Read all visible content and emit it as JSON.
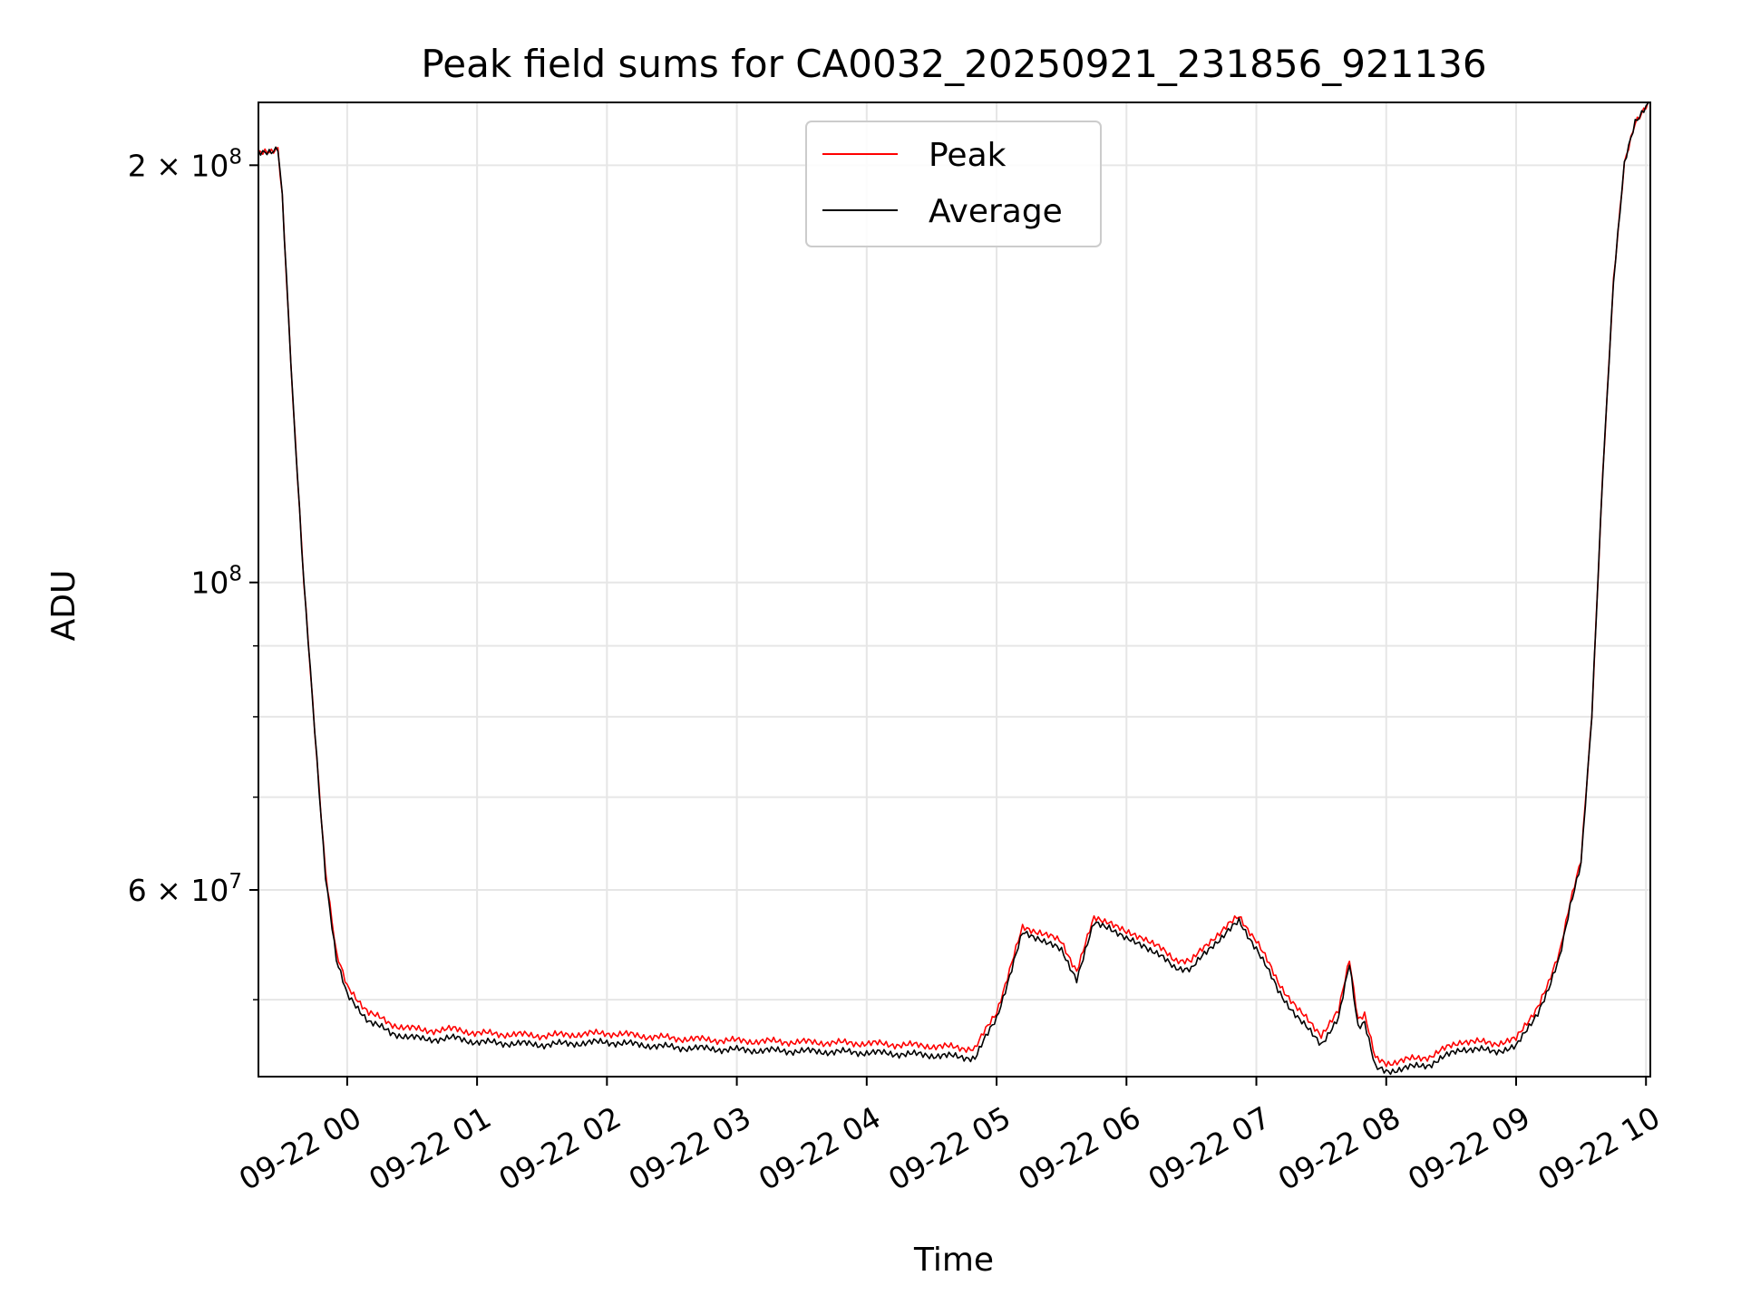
{
  "chart_data": {
    "type": "line",
    "title": "Peak field sums for CA0032_20250921_231856_921136",
    "xlabel": "Time",
    "ylabel": "ADU",
    "yscale": "log",
    "ylim": [
      44000000,
      222000000
    ],
    "xlim": [
      "2025-09-21 23:19",
      "2025-09-22 10:02"
    ],
    "grid": true,
    "legend_position": "top-center",
    "x_ticks": [
      "09-22 00",
      "09-22 01",
      "09-22 02",
      "09-22 03",
      "09-22 04",
      "09-22 05",
      "09-22 06",
      "09-22 07",
      "09-22 08",
      "09-22 09",
      "09-22 10"
    ],
    "y_ticks": [
      {
        "value": 200000000,
        "mantissa": "2",
        "exponent": "8"
      },
      {
        "value": 100000000,
        "mantissa": "",
        "exponent": "8"
      },
      {
        "value": 60000000,
        "mantissa": "6",
        "exponent": "7"
      }
    ],
    "y_minor_ticks": [
      50000000,
      70000000,
      80000000,
      90000000
    ],
    "x": [
      "2025-09-21 23:19",
      "2025-09-21 23:25",
      "2025-09-21 23:28",
      "2025-09-21 23:30",
      "2025-09-21 23:35",
      "2025-09-21 23:40",
      "2025-09-21 23:45",
      "2025-09-21 23:50",
      "2025-09-21 23:55",
      "2025-09-22 00:00",
      "2025-09-22 00:10",
      "2025-09-22 00:20",
      "2025-09-22 00:35",
      "2025-09-22 00:50",
      "2025-09-22 01:00",
      "2025-09-22 01:30",
      "2025-09-22 02:00",
      "2025-09-22 02:30",
      "2025-09-22 03:00",
      "2025-09-22 03:30",
      "2025-09-22 04:00",
      "2025-09-22 04:30",
      "2025-09-22 04:50",
      "2025-09-22 05:00",
      "2025-09-22 05:12",
      "2025-09-22 05:20",
      "2025-09-22 05:30",
      "2025-09-22 05:37",
      "2025-09-22 05:45",
      "2025-09-22 05:52",
      "2025-09-22 06:00",
      "2025-09-22 06:08",
      "2025-09-22 06:15",
      "2025-09-22 06:22",
      "2025-09-22 06:30",
      "2025-09-22 06:40",
      "2025-09-22 06:52",
      "2025-09-22 07:00",
      "2025-09-22 07:10",
      "2025-09-22 07:20",
      "2025-09-22 07:30",
      "2025-09-22 07:38",
      "2025-09-22 07:43",
      "2025-09-22 07:47",
      "2025-09-22 07:50",
      "2025-09-22 07:55",
      "2025-09-22 08:00",
      "2025-09-22 08:20",
      "2025-09-22 08:35",
      "2025-09-22 08:50",
      "2025-09-22 09:00",
      "2025-09-22 09:10",
      "2025-09-22 09:15",
      "2025-09-22 09:20",
      "2025-09-22 09:25",
      "2025-09-22 09:30",
      "2025-09-22 09:35",
      "2025-09-22 09:40",
      "2025-09-22 09:45",
      "2025-09-22 09:50",
      "2025-09-22 09:55",
      "2025-09-22 10:00",
      "2025-09-22 10:02"
    ],
    "series": [
      {
        "name": "Peak",
        "color": "#ff0000",
        "values": [
          205000000,
          204000000,
          205000000,
          190000000,
          135000000,
          100000000,
          78000000,
          62000000,
          54000000,
          51000000,
          49000000,
          48000000,
          47500000,
          47600000,
          47300000,
          47100000,
          47300000,
          46900000,
          46700000,
          46600000,
          46500000,
          46300000,
          46100000,
          49000000,
          56300000,
          56000000,
          55000000,
          52500000,
          57200000,
          57000000,
          55800000,
          55500000,
          54500000,
          53500000,
          53300000,
          55400000,
          57400000,
          55200000,
          51500000,
          49000000,
          47200000,
          49000000,
          53500000,
          48500000,
          48800000,
          45300000,
          45000000,
          45500000,
          46700000,
          46500000,
          46800000,
          49500000,
          51300000,
          54000000,
          59000000,
          63000000,
          80000000,
          120000000,
          165000000,
          200000000,
          215000000,
          221000000,
          222000000
        ]
      },
      {
        "name": "Average",
        "color": "#000000",
        "values": [
          205000000,
          204000000,
          205000000,
          190000000,
          135000000,
          100000000,
          78000000,
          61500000,
          53500000,
          50300000,
          48300000,
          47300000,
          46800000,
          46900000,
          46600000,
          46400000,
          46600000,
          46200000,
          46000000,
          45900000,
          45800000,
          45600000,
          45400000,
          48500000,
          55800000,
          55400000,
          54200000,
          51800000,
          56700000,
          56500000,
          55200000,
          54800000,
          53800000,
          52800000,
          52600000,
          54800000,
          56900000,
          54500000,
          50800000,
          48300000,
          46500000,
          48400000,
          53100000,
          47900000,
          48200000,
          44600000,
          44400000,
          44900000,
          46100000,
          45900000,
          46200000,
          49000000,
          50800000,
          53500000,
          58600000,
          62700000,
          80000000,
          120000000,
          165000000,
          200000000,
          215000000,
          221000000,
          222000000
        ]
      }
    ]
  }
}
